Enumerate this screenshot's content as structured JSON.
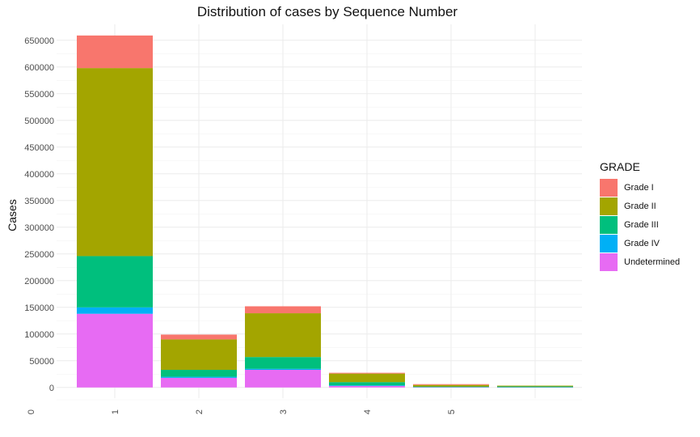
{
  "chart_data": {
    "type": "bar",
    "stacked": true,
    "title": "Distribution of cases by Sequence Number",
    "xlabel": "",
    "ylabel": "Cases",
    "ylim": [
      -20000,
      680000
    ],
    "y_ticks": [
      0,
      50000,
      100000,
      150000,
      200000,
      250000,
      300000,
      350000,
      400000,
      450000,
      500000,
      550000,
      600000,
      650000
    ],
    "x_tick_labels": [
      "0",
      "1",
      "2",
      "3",
      "4",
      "5"
    ],
    "categories": [
      "1",
      "2",
      "3",
      "4",
      "5",
      ""
    ],
    "grid": true,
    "legend": {
      "title": "GRADE",
      "position": "right"
    },
    "series": [
      {
        "name": "Undetermined",
        "color": "#E76BF3",
        "values": [
          138000,
          18000,
          33000,
          3000,
          500,
          300
        ]
      },
      {
        "name": "Grade IV",
        "color": "#00B0F6",
        "values": [
          12000,
          2000,
          2000,
          1000,
          200,
          100
        ]
      },
      {
        "name": "Grade III",
        "color": "#00BF7D",
        "values": [
          96000,
          13000,
          22000,
          6000,
          1000,
          1500
        ]
      },
      {
        "name": "Grade II",
        "color": "#A3A500",
        "values": [
          352000,
          57000,
          82000,
          16000,
          3000,
          300
        ]
      },
      {
        "name": "Grade I",
        "color": "#F8766D",
        "values": [
          61000,
          9000,
          13000,
          1000,
          300,
          0
        ]
      }
    ]
  }
}
